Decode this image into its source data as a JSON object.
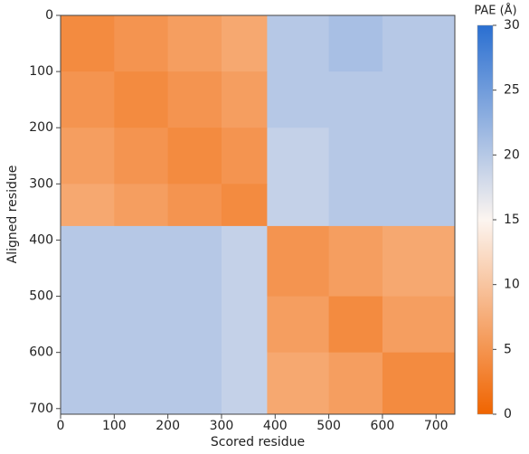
{
  "chart_data": {
    "type": "heatmap",
    "x_label": "Scored residue",
    "y_label": "Aligned residue",
    "colorbar_title": "PAE (Å)",
    "x_bins": [
      0,
      100,
      200,
      300,
      385,
      500,
      600,
      735
    ],
    "y_bins": [
      0,
      100,
      200,
      300,
      375,
      500,
      600,
      710
    ],
    "z": [
      [
        4,
        5,
        6,
        7,
        20,
        21,
        20
      ],
      [
        5,
        4,
        5,
        6,
        20,
        20,
        20
      ],
      [
        6,
        5,
        4,
        5,
        19,
        20,
        20
      ],
      [
        7,
        6,
        5,
        4,
        19,
        20,
        20
      ],
      [
        20,
        20,
        20,
        19,
        5,
        6,
        7
      ],
      [
        20,
        20,
        20,
        19,
        6,
        4,
        6
      ],
      [
        20,
        20,
        20,
        19,
        7,
        6,
        4
      ]
    ],
    "xlim": [
      0,
      735
    ],
    "ylim": [
      0,
      710
    ],
    "xticks": [
      0,
      100,
      200,
      300,
      400,
      500,
      600,
      700
    ],
    "yticks": [
      0,
      100,
      200,
      300,
      400,
      500,
      600,
      700
    ],
    "clim": [
      0,
      30
    ],
    "cticks": [
      0,
      5,
      10,
      15,
      20,
      25,
      30
    ],
    "colorscale": [
      {
        "value": 0,
        "color": "#f06400"
      },
      {
        "value": 15,
        "color": "#fcf5f0"
      },
      {
        "value": 30,
        "color": "#2a6fd1"
      }
    ]
  }
}
